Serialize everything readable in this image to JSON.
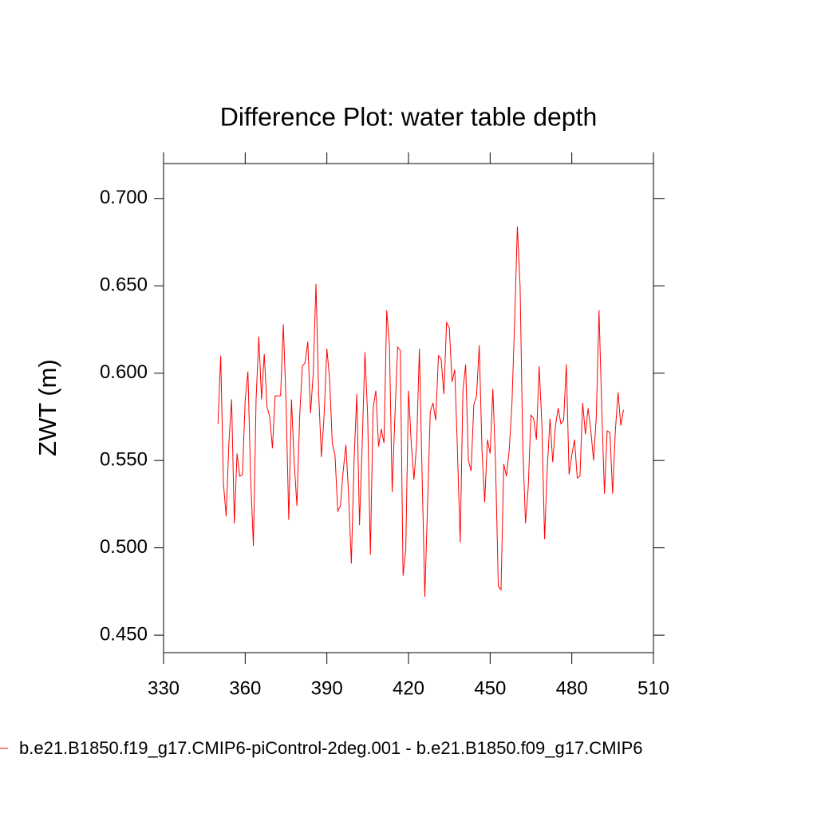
{
  "chart_data": {
    "type": "line",
    "title": "Difference Plot: water table depth",
    "y_label": "ZWT  (m)",
    "x": [
      350,
      351,
      352,
      353,
      354,
      355,
      356,
      357,
      358,
      359,
      360,
      361,
      362,
      363,
      364,
      365,
      366,
      367,
      368,
      369,
      370,
      371,
      372,
      373,
      374,
      375,
      376,
      377,
      378,
      379,
      380,
      381,
      382,
      383,
      384,
      385,
      386,
      387,
      388,
      389,
      390,
      391,
      392,
      393,
      394,
      395,
      396,
      397,
      398,
      399,
      400,
      401,
      402,
      403,
      404,
      405,
      406,
      407,
      408,
      409,
      410,
      411,
      412,
      413,
      414,
      415,
      416,
      417,
      418,
      419,
      420,
      421,
      422,
      423,
      424,
      425,
      426,
      427,
      428,
      429,
      430,
      431,
      432,
      433,
      434,
      435,
      436,
      437,
      438,
      439,
      440,
      441,
      442,
      443,
      444,
      445,
      446,
      447,
      448,
      449,
      450,
      451,
      452,
      453,
      454,
      455,
      456,
      457,
      458,
      459,
      460,
      461,
      462,
      463,
      464,
      465,
      466,
      467,
      468,
      469,
      470,
      471,
      472,
      473,
      474,
      475,
      476,
      477,
      478,
      479,
      480,
      481,
      482,
      483,
      484,
      485,
      486,
      487,
      488,
      489,
      490,
      491,
      492,
      493,
      494,
      495,
      496,
      497,
      498,
      499
    ],
    "series": [
      {
        "name": "b.e21.B1850.f19_g17.CMIP6-piControl-2deg.001 - b.e21.B1850.f09_g17.CMIP6",
        "color": "#ff0000",
        "values": [
          0.571,
          0.61,
          0.537,
          0.518,
          0.56,
          0.585,
          0.514,
          0.554,
          0.541,
          0.542,
          0.585,
          0.601,
          0.54,
          0.501,
          0.585,
          0.621,
          0.585,
          0.611,
          0.581,
          0.575,
          0.557,
          0.587,
          0.587,
          0.587,
          0.628,
          0.584,
          0.516,
          0.585,
          0.549,
          0.524,
          0.575,
          0.604,
          0.606,
          0.618,
          0.577,
          0.6,
          0.651,
          0.588,
          0.552,
          0.576,
          0.614,
          0.597,
          0.56,
          0.553,
          0.521,
          0.524,
          0.544,
          0.559,
          0.53,
          0.491,
          0.55,
          0.588,
          0.513,
          0.56,
          0.612,
          0.575,
          0.496,
          0.58,
          0.59,
          0.558,
          0.568,
          0.56,
          0.636,
          0.616,
          0.532,
          0.575,
          0.615,
          0.613,
          0.484,
          0.499,
          0.59,
          0.56,
          0.539,
          0.56,
          0.614,
          0.542,
          0.472,
          0.525,
          0.578,
          0.583,
          0.573,
          0.61,
          0.608,
          0.588,
          0.629,
          0.626,
          0.595,
          0.602,
          0.555,
          0.503,
          0.59,
          0.605,
          0.55,
          0.544,
          0.582,
          0.587,
          0.616,
          0.556,
          0.526,
          0.562,
          0.554,
          0.591,
          0.547,
          0.478,
          0.476,
          0.548,
          0.541,
          0.556,
          0.582,
          0.63,
          0.684,
          0.65,
          0.557,
          0.514,
          0.535,
          0.576,
          0.574,
          0.562,
          0.604,
          0.571,
          0.505,
          0.546,
          0.574,
          0.549,
          0.57,
          0.58,
          0.571,
          0.573,
          0.605,
          0.542,
          0.553,
          0.562,
          0.54,
          0.541,
          0.583,
          0.565,
          0.58,
          0.567,
          0.55,
          0.575,
          0.636,
          0.58,
          0.531,
          0.567,
          0.566,
          0.531,
          0.567,
          0.589,
          0.57,
          0.579
        ]
      }
    ],
    "xlim": [
      330,
      510
    ],
    "xticks": [
      330,
      360,
      390,
      420,
      450,
      480,
      510
    ],
    "ylim": [
      0.44,
      0.72
    ],
    "yticks": [
      {
        "value": 0.45,
        "label": "0.450"
      },
      {
        "value": 0.5,
        "label": "0.500"
      },
      {
        "value": 0.55,
        "label": "0.550"
      },
      {
        "value": 0.6,
        "label": "0.600"
      },
      {
        "value": 0.65,
        "label": "0.650"
      },
      {
        "value": 0.7,
        "label": "0.700"
      }
    ],
    "grid": false
  }
}
